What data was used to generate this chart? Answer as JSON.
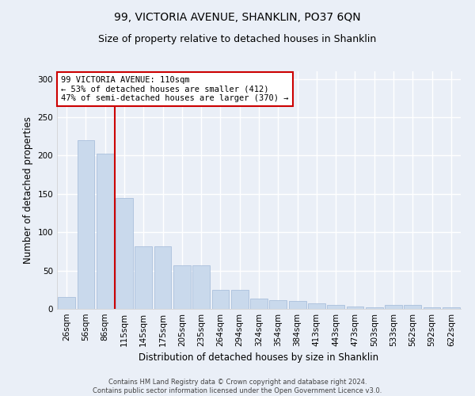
{
  "title_line1": "99, VICTORIA AVENUE, SHANKLIN, PO37 6QN",
  "title_line2": "Size of property relative to detached houses in Shanklin",
  "xlabel": "Distribution of detached houses by size in Shanklin",
  "ylabel": "Number of detached properties",
  "footer_line1": "Contains HM Land Registry data © Crown copyright and database right 2024.",
  "footer_line2": "Contains public sector information licensed under the Open Government Licence v3.0.",
  "bar_labels": [
    "26sqm",
    "56sqm",
    "86sqm",
    "115sqm",
    "145sqm",
    "175sqm",
    "205sqm",
    "235sqm",
    "264sqm",
    "294sqm",
    "324sqm",
    "354sqm",
    "384sqm",
    "413sqm",
    "443sqm",
    "473sqm",
    "503sqm",
    "533sqm",
    "562sqm",
    "592sqm",
    "622sqm"
  ],
  "bar_values": [
    15,
    220,
    203,
    145,
    82,
    82,
    57,
    57,
    25,
    25,
    13,
    11,
    10,
    7,
    5,
    3,
    2,
    5,
    5,
    2,
    2
  ],
  "bar_color": "#c9d9ec",
  "bar_edge_color": "#a0b8d8",
  "vline_color": "#cc0000",
  "annotation_text": "99 VICTORIA AVENUE: 110sqm\n← 53% of detached houses are smaller (412)\n47% of semi-detached houses are larger (370) →",
  "annotation_box_color": "#ffffff",
  "annotation_box_edge": "#cc0000",
  "ylim": [
    0,
    310
  ],
  "yticks": [
    0,
    50,
    100,
    150,
    200,
    250,
    300
  ],
  "bg_color": "#eaeff7",
  "plot_bg_color": "#eaeff7",
  "grid_color": "#ffffff",
  "title_fontsize": 10,
  "subtitle_fontsize": 9,
  "axis_label_fontsize": 8.5,
  "tick_fontsize": 7.5,
  "footer_fontsize": 6.0
}
